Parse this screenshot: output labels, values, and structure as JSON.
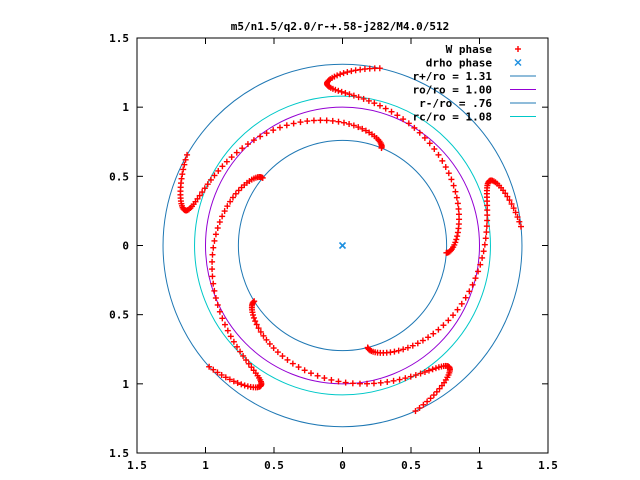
{
  "chart_data": {
    "type": "scatter",
    "title": "m5/n1.5/q2.0/r-+.58-j282/M4.0/512",
    "xlim": [
      -1.5,
      1.5
    ],
    "ylim": [
      -1.5,
      1.5
    ],
    "x_tick_values": [
      -1.5,
      -1,
      -0.5,
      0,
      0.5,
      1,
      1.5
    ],
    "x_tick_labels": [
      "1.5",
      "1",
      "0.5",
      "0",
      "0.5",
      "1",
      "1.5"
    ],
    "y_tick_values": [
      1.5,
      1,
      0.5,
      0,
      -0.5,
      -1,
      -1.5
    ],
    "y_tick_labels": [
      "1.5",
      "1",
      "0.5",
      "0",
      "0.5",
      "1",
      "1.5"
    ],
    "grid": false,
    "legend_position": "top-right",
    "legend": [
      {
        "label": "W phase",
        "marker": "plus",
        "color": "#ff0000"
      },
      {
        "label": "drho phase",
        "marker": "cross",
        "color": "#1e90e0"
      },
      {
        "label": "r+/ro = 1.31",
        "marker": "line",
        "color": "#1f78b4"
      },
      {
        "label": "ro/ro = 1.00",
        "marker": "line",
        "color": "#9400d3"
      },
      {
        "label": "r-/ro = .76",
        "marker": "line",
        "color": "#1f78b4"
      },
      {
        "label": "rc/ro = 1.08",
        "marker": "line",
        "color": "#00c8c8"
      }
    ],
    "circles": [
      {
        "name": "r+/ro = 1.31",
        "radius": 1.31,
        "color": "#1f78b4"
      },
      {
        "name": "ro/ro = 1.00",
        "radius": 1.0,
        "color": "#9400d3"
      },
      {
        "name": "r-/ro = .76",
        "radius": 0.76,
        "color": "#1f78b4"
      },
      {
        "name": "rc/ro = 1.08",
        "radius": 1.08,
        "color": "#00c8c8"
      }
    ],
    "series": [
      {
        "name": "W phase",
        "color": "#ff0000",
        "marker": "plus",
        "arms": 5,
        "arm_start_angle_deg": 78,
        "r_inner": 0.76,
        "r_outer": 1.31,
        "wave_amplitude_deg": 32
      },
      {
        "name": "drho phase",
        "color": "#1e90e0",
        "marker": "cross",
        "points": [
          [
            0,
            0
          ]
        ]
      }
    ]
  }
}
